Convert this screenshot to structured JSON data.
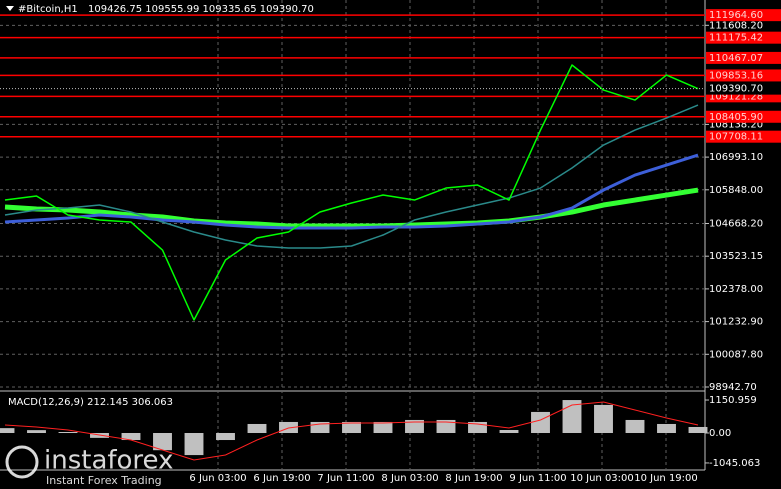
{
  "chart_data": {
    "type": "line",
    "title": "#Bitcoin,H1",
    "ohlc_text": "109426.75 109555.99 109335.65 109390.70",
    "ylim": [
      98837.7,
      112494.7
    ],
    "yticks": [
      {
        "value": 111608.2,
        "label": "111608.20"
      },
      {
        "value": 108138.2,
        "label": "108138.20"
      },
      {
        "value": 106993.1,
        "label": "106993.10"
      },
      {
        "value": 105848,
        "label": "105848.00"
      },
      {
        "value": 104668.2,
        "label": "104668.20"
      },
      {
        "value": 103523.15,
        "label": "103523.15"
      },
      {
        "value": 102378,
        "label": "102378.00"
      },
      {
        "value": 101232.9,
        "label": "101232.90"
      },
      {
        "value": 100087.8,
        "label": "100087.80"
      },
      {
        "value": 98942.7,
        "label": "98942.70"
      }
    ],
    "last_price": {
      "value": 109390.7,
      "label": "109390.70"
    },
    "levels": {
      "color": "#ff0000",
      "values": [
        111964.6,
        111175.42,
        110467.07,
        109853.16,
        109121.28,
        108405.9,
        107708.11
      ],
      "value_labels": [
        "111964.60",
        "111175.42",
        "110467.07",
        "109853.16",
        "109121.28",
        "108405.90",
        "107708.11"
      ]
    },
    "xtick_labels": [
      "6 Jun 03:00",
      "6 Jun 19:00",
      "7 Jun 11:00",
      "8 Jun 03:00",
      "8 Jun 19:00",
      "9 Jun 11:00",
      "10 Jun 03:00",
      "10 Jun 19:00"
    ],
    "series": [
      {
        "color": "#00ff00",
        "width": 1.5,
        "values": [
          105490,
          105630,
          104965,
          104790,
          104720,
          103740,
          101289,
          103390,
          104160,
          104370,
          105070,
          105385,
          105665,
          105490,
          105910,
          106015,
          105490,
          107940,
          110218,
          109340,
          108990,
          109865,
          109390
        ]
      },
      {
        "color": "#2a8a8a",
        "width": 1.5,
        "values": [
          104965,
          105140,
          105210,
          105315,
          105070,
          104720,
          104370,
          104090,
          103880,
          103810,
          103810,
          103880,
          104265,
          104790,
          105070,
          105315,
          105560,
          105910,
          106611,
          107416,
          107940,
          108361,
          108816
        ]
      },
      {
        "color": "#3d5fd9",
        "width": 3,
        "values": [
          104720,
          104790,
          104860,
          104965,
          104895,
          104790,
          104720,
          104615,
          104545,
          104510,
          104510,
          104510,
          104545,
          104545,
          104580,
          104650,
          104720,
          104895,
          105210,
          105840,
          106365,
          106715,
          107065
        ]
      },
      {
        "color": "#33ff33",
        "width": 5,
        "values": [
          105245,
          105175,
          105140,
          105070,
          104965,
          104895,
          104755,
          104685,
          104650,
          104580,
          104580,
          104580,
          104580,
          104615,
          104650,
          104685,
          104755,
          104895,
          105070,
          105315,
          105490,
          105665,
          105840
        ]
      }
    ],
    "macd": {
      "title": "MACD(12,26,9) 212.145 306.063",
      "ylim": [
        -1291,
        1396
      ],
      "yticks": [
        1150.959,
        {
          "value": 0,
          "label": "0.00"
        },
        -1045.063
      ],
      "histogram": {
        "color": "#c0c0c0",
        "values": [
          170,
          100,
          35,
          -170,
          -245,
          -600,
          -770,
          -245,
          315,
          385,
          385,
          385,
          385,
          455,
          455,
          385,
          105,
          735,
          1150,
          980,
          455,
          315,
          210
        ]
      },
      "signal": {
        "color": "#ff2020",
        "values": [
          279,
          209,
          105,
          -70,
          -244,
          -593,
          -942,
          -768,
          -244,
          175,
          314,
          349,
          349,
          384,
          384,
          314,
          175,
          454,
          977,
          1082,
          803,
          524,
          279
        ]
      }
    },
    "watermark": {
      "name": "instaforex",
      "slogan": "Instant Forex Trading"
    }
  }
}
